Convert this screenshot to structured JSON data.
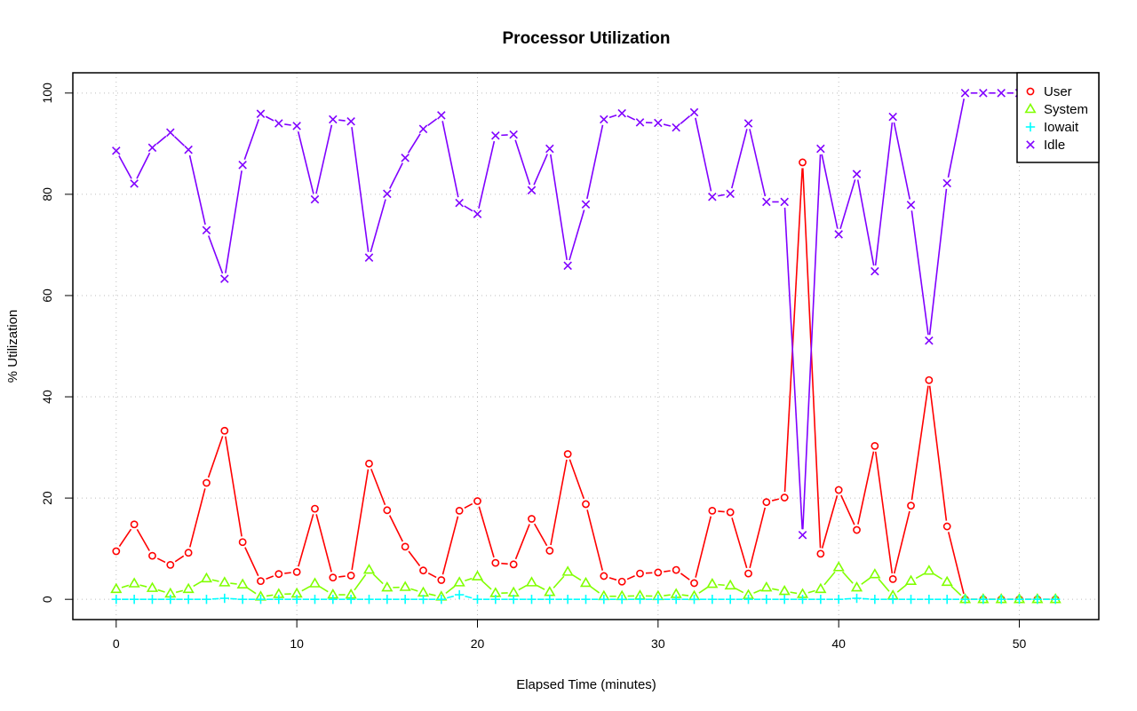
{
  "chart_data": {
    "type": "line",
    "title": "Processor Utilization",
    "xlabel": "Elapsed Time (minutes)",
    "ylabel": "% Utilization",
    "xlim": [
      -2.4,
      54.4
    ],
    "ylim": [
      -4,
      104
    ],
    "x_ticks": [
      "0",
      "10",
      "20",
      "30",
      "40",
      "50"
    ],
    "y_ticks": [
      "0",
      "20",
      "40",
      "60",
      "80",
      "100"
    ],
    "grid": true,
    "legend_position": "top-right",
    "x": [
      0,
      1,
      2,
      3,
      4,
      5,
      6,
      7,
      8,
      9,
      10,
      11,
      12,
      13,
      14,
      15,
      16,
      17,
      18,
      19,
      20,
      21,
      22,
      23,
      24,
      25,
      26,
      27,
      28,
      29,
      30,
      31,
      32,
      33,
      34,
      35,
      36,
      37,
      38,
      39,
      40,
      41,
      42,
      43,
      44,
      45,
      46,
      47,
      48,
      49,
      50,
      51,
      52
    ],
    "series": [
      {
        "name": "User",
        "color": "#ff0000",
        "marker": "circle",
        "values": [
          9.5,
          14.8,
          8.6,
          6.8,
          9.2,
          23.0,
          33.3,
          11.3,
          3.6,
          5.0,
          5.4,
          17.9,
          4.3,
          4.7,
          26.8,
          17.6,
          10.4,
          5.7,
          3.8,
          17.5,
          19.4,
          7.2,
          6.9,
          15.9,
          9.6,
          28.7,
          18.8,
          4.6,
          3.5,
          5.1,
          5.3,
          5.8,
          3.2,
          17.5,
          17.2,
          5.1,
          19.2,
          20.1,
          86.3,
          9.0,
          21.6,
          13.7,
          30.3,
          4.0,
          18.5,
          43.3,
          14.4,
          0,
          0,
          0,
          0,
          0,
          0
        ]
      },
      {
        "name": "System",
        "color": "#80ff00",
        "marker": "triangle",
        "values": [
          2.0,
          3.1,
          2.2,
          1.1,
          2.0,
          4.1,
          3.3,
          2.9,
          0.5,
          1.0,
          1.1,
          3.1,
          0.9,
          0.9,
          5.8,
          2.3,
          2.4,
          1.3,
          0.5,
          3.3,
          4.5,
          1.2,
          1.3,
          3.3,
          1.4,
          5.4,
          3.2,
          0.6,
          0.6,
          0.7,
          0.6,
          1.0,
          0.6,
          3.0,
          2.7,
          0.8,
          2.3,
          1.6,
          1.0,
          2.0,
          6.3,
          2.3,
          4.9,
          0.7,
          3.6,
          5.6,
          3.4,
          0,
          0,
          0,
          0,
          0,
          0
        ]
      },
      {
        "name": "Iowait",
        "color": "#00ffff",
        "marker": "plus",
        "values": [
          0,
          0,
          0,
          0,
          0,
          0,
          0.2,
          0,
          0,
          0,
          0,
          0,
          0,
          0,
          0,
          0,
          0,
          0,
          0,
          0.9,
          0,
          0,
          0,
          0,
          0,
          0,
          0,
          0,
          0,
          0,
          0,
          0,
          0,
          0,
          0,
          0,
          0,
          0,
          0,
          0,
          0,
          0.2,
          0,
          0,
          0,
          0,
          0,
          0,
          0,
          0,
          0,
          0,
          0
        ]
      },
      {
        "name": "Idle",
        "color": "#8000ff",
        "marker": "x",
        "values": [
          88.6,
          82.1,
          89.2,
          92.2,
          88.8,
          72.9,
          63.3,
          85.8,
          95.9,
          94.0,
          93.5,
          79.0,
          94.8,
          94.4,
          67.5,
          80.1,
          87.2,
          92.9,
          95.6,
          78.3,
          76.1,
          91.6,
          91.8,
          80.8,
          89.0,
          65.9,
          78.0,
          94.8,
          96.0,
          94.2,
          94.1,
          93.2,
          96.2,
          79.5,
          80.1,
          94.0,
          78.5,
          78.5,
          12.7,
          89.0,
          72.1,
          84.0,
          64.8,
          95.3,
          77.9,
          51.1,
          82.2,
          100,
          100,
          100,
          100,
          100,
          100
        ]
      }
    ]
  }
}
